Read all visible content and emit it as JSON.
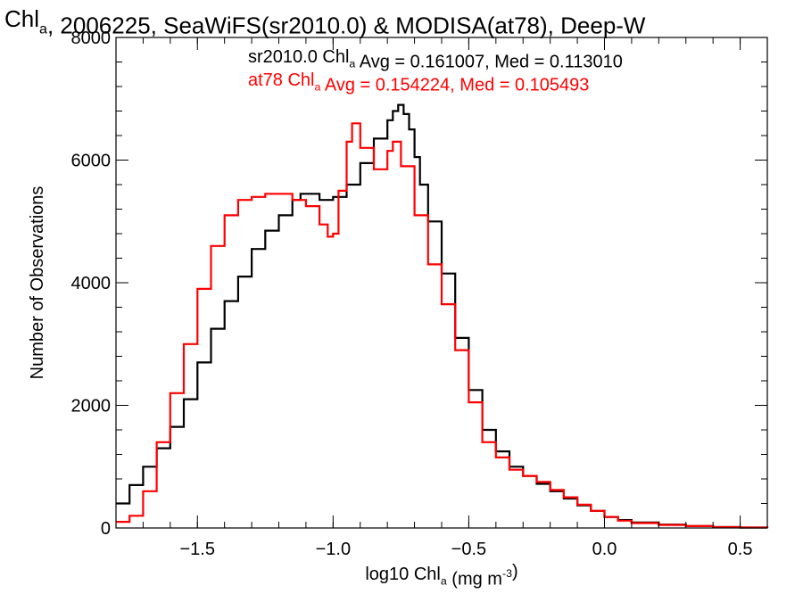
{
  "chart_data": {
    "type": "line",
    "title": {
      "parts": [
        {
          "text": "Chl",
          "sub": false
        },
        {
          "text": "a",
          "sub": true
        },
        {
          "text": ", 2006225, SeaWiFS(sr2010.0) & MODISA(at78), Deep-W",
          "sub": false
        }
      ]
    },
    "xlabel": {
      "parts": [
        {
          "text": "log10 Chl",
          "sub": false
        },
        {
          "text": "a",
          "sub": true
        },
        {
          "text": " (mg m",
          "sub": false
        },
        {
          "text": "-3",
          "sup": true
        },
        {
          "text": ")",
          "sub": false
        }
      ]
    },
    "ylabel": "Number of Observations",
    "xlim": [
      -1.8,
      0.6
    ],
    "ylim": [
      0,
      8000
    ],
    "xticks": [
      -1.5,
      -1.0,
      -0.5,
      0.0,
      0.5
    ],
    "xtick_labels": [
      "−1.5",
      "−1.0",
      "−0.5",
      "0.0",
      "0.5"
    ],
    "yticks": [
      0,
      2000,
      4000,
      6000,
      8000
    ],
    "ytick_labels": [
      "0",
      "2000",
      "4000",
      "6000",
      "8000"
    ],
    "grid": false,
    "legend_position": "top",
    "series": [
      {
        "id": "sr2010",
        "color": "#000000",
        "legend_parts": [
          {
            "text": "sr2010.0 Chl",
            "sub": false
          },
          {
            "text": "a",
            "sub": true
          },
          {
            "text": " Avg = 0.161007, Med = 0.113010",
            "sub": false
          }
        ],
        "x": [
          -1.8,
          -1.75,
          -1.7,
          -1.65,
          -1.6,
          -1.55,
          -1.5,
          -1.45,
          -1.4,
          -1.35,
          -1.3,
          -1.25,
          -1.2,
          -1.15,
          -1.12,
          -1.1,
          -1.05,
          -1.0,
          -0.95,
          -0.9,
          -0.85,
          -0.8,
          -0.78,
          -0.76,
          -0.74,
          -0.72,
          -0.7,
          -0.68,
          -0.65,
          -0.6,
          -0.55,
          -0.5,
          -0.45,
          -0.4,
          -0.35,
          -0.3,
          -0.25,
          -0.2,
          -0.15,
          -0.1,
          -0.05,
          0.0,
          0.05,
          0.1,
          0.2,
          0.3,
          0.4,
          0.5,
          0.6
        ],
        "y": [
          400,
          700,
          1000,
          1300,
          1650,
          2100,
          2700,
          3250,
          3700,
          4100,
          4550,
          4850,
          5100,
          5350,
          5450,
          5450,
          5350,
          5400,
          5600,
          5950,
          6350,
          6650,
          6800,
          6900,
          6750,
          6500,
          6050,
          5600,
          5000,
          4150,
          3100,
          2250,
          1600,
          1250,
          1000,
          850,
          720,
          600,
          480,
          370,
          280,
          180,
          130,
          90,
          55,
          30,
          15,
          8,
          5
        ]
      },
      {
        "id": "at78",
        "color": "#ff0000",
        "legend_parts": [
          {
            "text": "at78 Chl",
            "sub": false
          },
          {
            "text": "a",
            "sub": true
          },
          {
            "text": " Avg = 0.154224, Med = 0.105493",
            "sub": false
          }
        ],
        "x": [
          -1.8,
          -1.75,
          -1.7,
          -1.65,
          -1.6,
          -1.55,
          -1.5,
          -1.45,
          -1.4,
          -1.35,
          -1.3,
          -1.25,
          -1.2,
          -1.15,
          -1.1,
          -1.05,
          -1.02,
          -1.0,
          -0.98,
          -0.95,
          -0.93,
          -0.9,
          -0.85,
          -0.8,
          -0.78,
          -0.75,
          -0.7,
          -0.65,
          -0.6,
          -0.55,
          -0.5,
          -0.45,
          -0.4,
          -0.35,
          -0.3,
          -0.25,
          -0.2,
          -0.15,
          -0.1,
          -0.05,
          0.0,
          0.05,
          0.1,
          0.2,
          0.3,
          0.4,
          0.5,
          0.6
        ],
        "y": [
          100,
          200,
          600,
          1400,
          2200,
          3000,
          3900,
          4600,
          5100,
          5350,
          5400,
          5450,
          5450,
          5350,
          5250,
          4950,
          4750,
          4800,
          5500,
          6300,
          6600,
          6200,
          5850,
          6150,
          6300,
          5900,
          5100,
          4300,
          3650,
          2900,
          2050,
          1400,
          1150,
          950,
          850,
          750,
          620,
          500,
          380,
          280,
          180,
          120,
          80,
          50,
          30,
          15,
          8,
          5
        ]
      }
    ]
  }
}
